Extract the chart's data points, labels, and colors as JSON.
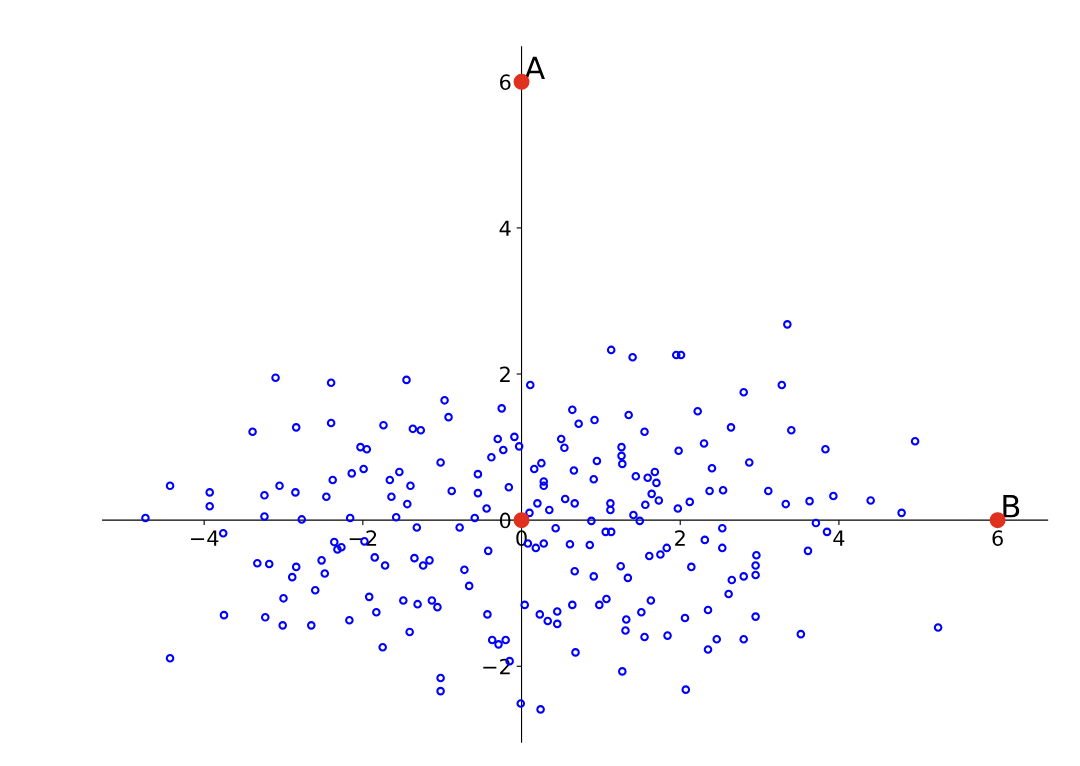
{
  "chart_data": {
    "type": "scatter",
    "xlim": [
      -5.28,
      6.63
    ],
    "ylim": [
      -3.04,
      6.48
    ],
    "xticks": [
      {
        "value": -4,
        "label": "−4"
      },
      {
        "value": -2,
        "label": "−2"
      },
      0,
      2,
      4,
      6
    ],
    "yticks": [
      {
        "value": -2,
        "label": "−2"
      },
      0,
      2,
      4,
      6
    ],
    "grid": false,
    "marker": "circle",
    "annotations": [
      {
        "text": "A",
        "x": 0,
        "y": 6
      },
      {
        "text": "B",
        "x": 6,
        "y": 0
      }
    ],
    "series": [
      {
        "color": "#0000ff",
        "x": [
          -4.74,
          -4.43,
          -4.43,
          -3.93,
          -3.93,
          -3.76,
          -3.75,
          -3.39,
          -3.24,
          -3.24,
          -3.33,
          -3.18,
          -3.23,
          -3.1,
          -3.05,
          -3.0,
          -3.01,
          -2.89,
          -2.84,
          -2.84,
          -2.85,
          -2.77,
          -2.65,
          -2.6,
          -2.52,
          -2.48,
          -2.46,
          -2.4,
          -2.4,
          -2.38,
          -2.36,
          -2.32,
          -2.27,
          -2.17,
          -2.16,
          -2.14,
          -2.03,
          -1.95,
          -1.99,
          -1.98,
          -1.92,
          -1.85,
          -1.83,
          -1.75,
          -1.74,
          -1.72,
          -1.66,
          -1.64,
          -1.58,
          -1.54,
          -1.49,
          -1.45,
          -1.4,
          -1.44,
          -1.41,
          -1.37,
          -1.27,
          -1.35,
          -1.32,
          -1.31,
          -1.24,
          -1.16,
          -1.13,
          -1.06,
          -1.02,
          -0.97,
          -0.92,
          -1.02,
          -1.02,
          -0.88,
          -0.78,
          -0.72,
          -0.66,
          -0.59,
          -0.55,
          -0.55,
          -0.44,
          -0.43,
          -0.42,
          -0.38,
          -0.37,
          -0.29,
          -0.3,
          -0.25,
          -0.23,
          -0.2,
          -0.16,
          -0.15,
          -0.09,
          -0.03,
          -0.01,
          0.24,
          0.11,
          1.13,
          1.4,
          1.95,
          2.01,
          3.35,
          3.28,
          2.8,
          2.22,
          0.64,
          0.72,
          0.92,
          1.35,
          1.55,
          1.98,
          2.3,
          2.64,
          3.4,
          3.83,
          4.96,
          2.87,
          2.4,
          2.37,
          2.54,
          3.11,
          3.33,
          3.63,
          3.93,
          4.4,
          4.79,
          3.71,
          3.85,
          3.61,
          3.52,
          5.25,
          2.96,
          2.95,
          2.8,
          2.95,
          2.65,
          2.61,
          2.95,
          2.8,
          2.46,
          2.35,
          2.35,
          2.07,
          2.06,
          1.84,
          1.55,
          1.31,
          1.27,
          0.68,
          0.64,
          0.45,
          0.45,
          0.33,
          0.23,
          0.04,
          0.98,
          1.07,
          1.63,
          1.51,
          1.32,
          0.91,
          0.67,
          1.25,
          1.34,
          1.61,
          1.75,
          1.83,
          2.14,
          2.53,
          2.31,
          2.53,
          2.12,
          1.97,
          1.73,
          1.64,
          1.56,
          1.7,
          1.68,
          1.44,
          1.59,
          1.27,
          1.26,
          1.26,
          0.91,
          0.95,
          0.66,
          0.54,
          0.5,
          0.25,
          0.16,
          0.28,
          0.28,
          0.55,
          0.67,
          1.12,
          1.12,
          1.41,
          1.49,
          0.88,
          0.86,
          1.06,
          1.13,
          0.28,
          0.08,
          0.18,
          0.35,
          0.1,
          0.43,
          0.61,
          0.2
        ],
        "values": [
          0.03,
          0.47,
          -1.89,
          0.38,
          0.19,
          -0.18,
          -1.3,
          1.21,
          0.34,
          0.05,
          -0.59,
          -0.6,
          -1.33,
          1.95,
          0.47,
          -1.07,
          -1.44,
          -0.78,
          -0.64,
          1.27,
          0.38,
          0.01,
          -1.44,
          -0.96,
          -0.55,
          -0.73,
          0.32,
          1.88,
          1.33,
          0.55,
          -0.3,
          -0.4,
          -0.37,
          -1.37,
          0.03,
          0.64,
          1.0,
          0.97,
          0.7,
          -0.29,
          -1.05,
          -0.51,
          -1.26,
          -1.74,
          1.3,
          -0.62,
          0.55,
          0.32,
          0.04,
          0.66,
          -1.1,
          1.92,
          0.47,
          0.22,
          -1.53,
          1.25,
          1.23,
          -0.52,
          -0.1,
          -1.15,
          -0.62,
          -0.55,
          -1.1,
          -1.19,
          0.79,
          1.64,
          1.41,
          -2.16,
          -2.34,
          0.4,
          -0.1,
          -0.68,
          -0.9,
          0.03,
          0.63,
          0.37,
          0.16,
          -1.29,
          -0.42,
          0.86,
          -1.64,
          -1.7,
          1.11,
          1.53,
          0.96,
          -1.64,
          0.45,
          -1.93,
          1.14,
          1.01,
          -2.51,
          -2.59,
          1.85,
          2.33,
          2.23,
          2.26,
          2.26,
          2.68,
          1.85,
          1.75,
          1.49,
          1.51,
          1.32,
          1.37,
          1.44,
          1.21,
          0.95,
          1.05,
          1.27,
          1.23,
          0.97,
          1.08,
          0.79,
          0.71,
          0.4,
          0.41,
          0.4,
          0.22,
          0.26,
          0.33,
          0.27,
          0.1,
          -0.04,
          -0.16,
          -0.42,
          -1.56,
          -1.47,
          -0.48,
          -0.62,
          -0.77,
          -0.75,
          -0.82,
          -1.01,
          -1.32,
          -1.63,
          -1.63,
          -1.77,
          -1.23,
          -2.32,
          -1.34,
          -1.58,
          -1.6,
          -1.51,
          -2.07,
          -1.81,
          -1.16,
          -1.25,
          -1.42,
          -1.38,
          -1.29,
          -1.16,
          -1.16,
          -1.08,
          -1.1,
          -1.26,
          -1.36,
          -0.77,
          -0.7,
          -0.63,
          -0.79,
          -0.49,
          -0.47,
          -0.38,
          -0.64,
          -0.38,
          -0.27,
          -0.11,
          0.25,
          0.16,
          0.27,
          0.36,
          0.21,
          0.51,
          0.66,
          0.6,
          0.58,
          0.77,
          1.0,
          0.88,
          0.56,
          0.81,
          0.68,
          0.99,
          1.11,
          0.78,
          0.7,
          0.47,
          0.53,
          0.29,
          0.23,
          0.23,
          0.14,
          0.07,
          -0.01,
          -0.01,
          -0.34,
          -0.16,
          -0.16,
          -0.32,
          -0.32,
          -0.38,
          0.14,
          0.1,
          -0.11,
          -0.33,
          0.23
        ]
      },
      {
        "color": "#e0301e",
        "x": [
          0,
          0,
          6
        ],
        "values": [
          6,
          0,
          0
        ]
      }
    ]
  }
}
